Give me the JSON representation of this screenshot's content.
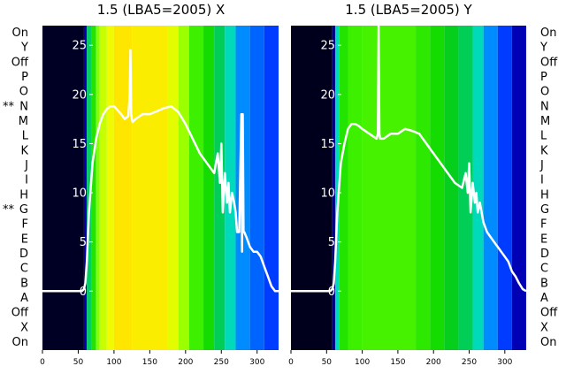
{
  "chart_data": {
    "type": "heatmap",
    "row_labels_top_to_bottom": [
      "On",
      "Y",
      "Off",
      "P",
      "O",
      "N",
      "M",
      "L",
      "K",
      "J",
      "I",
      "H",
      "G",
      "F",
      "E",
      "D",
      "C",
      "B",
      "A",
      "Off",
      "X",
      "On"
    ],
    "row_markers": [
      {
        "row": "N",
        "text": "**"
      },
      {
        "row": "G",
        "text": "**"
      }
    ],
    "panels": [
      {
        "title": "1.5 (LBA5=2005) X",
        "colormap": "gist_ncar",
        "xlim": [
          0,
          330
        ],
        "xticks": [
          0,
          50,
          100,
          150,
          200,
          250,
          300
        ],
        "ylim": [
          -6,
          27
        ],
        "yticks": [
          0,
          5,
          10,
          15,
          20,
          25
        ],
        "bands": [
          {
            "x0": 0,
            "x1": 58,
            "value": 0.02
          },
          {
            "x0": 58,
            "x1": 62,
            "value": 0.1
          },
          {
            "x0": 62,
            "x1": 68,
            "value": 0.35
          },
          {
            "x0": 68,
            "x1": 75,
            "value": 0.5
          },
          {
            "x0": 75,
            "x1": 80,
            "value": 0.62
          },
          {
            "x0": 80,
            "x1": 90,
            "value": 0.7
          },
          {
            "x0": 90,
            "x1": 100,
            "value": 0.76
          },
          {
            "x0": 100,
            "x1": 125,
            "value": 0.82
          },
          {
            "x0": 125,
            "x1": 175,
            "value": 0.8
          },
          {
            "x0": 175,
            "x1": 190,
            "value": 0.74
          },
          {
            "x0": 190,
            "x1": 205,
            "value": 0.65
          },
          {
            "x0": 205,
            "x1": 225,
            "value": 0.55
          },
          {
            "x0": 225,
            "x1": 240,
            "value": 0.47
          },
          {
            "x0": 240,
            "x1": 255,
            "value": 0.36
          },
          {
            "x0": 255,
            "x1": 270,
            "value": 0.28
          },
          {
            "x0": 270,
            "x1": 290,
            "value": 0.18
          },
          {
            "x0": 290,
            "x1": 310,
            "value": 0.16
          },
          {
            "x0": 310,
            "x1": 330,
            "value": 0.14
          }
        ],
        "line_series": {
          "x": [
            0,
            55,
            58,
            60,
            62,
            65,
            68,
            70,
            75,
            80,
            85,
            90,
            95,
            100,
            110,
            115,
            120,
            122,
            123,
            124,
            125,
            126,
            130,
            140,
            150,
            160,
            170,
            180,
            190,
            200,
            210,
            220,
            230,
            240,
            245,
            248,
            250,
            252,
            255,
            258,
            260,
            262,
            265,
            268,
            270,
            272,
            275,
            278,
            279,
            280,
            281,
            282,
            285,
            290,
            295,
            300,
            305,
            310,
            315,
            320,
            325,
            330
          ],
          "y": [
            0,
            0,
            0.2,
            0.8,
            3,
            8,
            11,
            13,
            15.5,
            17,
            18,
            18.5,
            18.8,
            18.8,
            18,
            17.5,
            17.8,
            20,
            24.5,
            18,
            17.5,
            17.2,
            17.5,
            18,
            18,
            18.3,
            18.6,
            18.8,
            18.2,
            17,
            15.5,
            14,
            13,
            12,
            14,
            11,
            15,
            8,
            12,
            9,
            11,
            8,
            10,
            9,
            8,
            6,
            6,
            18,
            4,
            18,
            6,
            6,
            5.5,
            4.5,
            4,
            4,
            3.5,
            2.5,
            1.5,
            0.5,
            0,
            0
          ]
        }
      },
      {
        "title": "1.5 (LBA5=2005) Y",
        "colormap": "gist_ncar",
        "xlim": [
          0,
          330
        ],
        "xticks": [
          0,
          50,
          100,
          150,
          200,
          250,
          300
        ],
        "ylim": [
          -6,
          27
        ],
        "yticks": [
          0,
          5,
          10,
          15,
          20,
          25
        ],
        "bands": [
          {
            "x0": 0,
            "x1": 58,
            "value": 0.01
          },
          {
            "x0": 58,
            "x1": 62,
            "value": 0.08
          },
          {
            "x0": 62,
            "x1": 68,
            "value": 0.28
          },
          {
            "x0": 68,
            "x1": 80,
            "value": 0.5
          },
          {
            "x0": 80,
            "x1": 100,
            "value": 0.55
          },
          {
            "x0": 100,
            "x1": 175,
            "value": 0.56
          },
          {
            "x0": 175,
            "x1": 195,
            "value": 0.52
          },
          {
            "x0": 195,
            "x1": 215,
            "value": 0.47
          },
          {
            "x0": 215,
            "x1": 235,
            "value": 0.42
          },
          {
            "x0": 235,
            "x1": 255,
            "value": 0.36
          },
          {
            "x0": 255,
            "x1": 270,
            "value": 0.28
          },
          {
            "x0": 270,
            "x1": 290,
            "value": 0.18
          },
          {
            "x0": 290,
            "x1": 310,
            "value": 0.14
          },
          {
            "x0": 310,
            "x1": 330,
            "value": 0.1
          }
        ],
        "line_series": {
          "x": [
            0,
            55,
            58,
            60,
            62,
            65,
            68,
            70,
            75,
            80,
            85,
            90,
            95,
            100,
            110,
            120,
            122,
            123,
            124,
            125,
            126,
            130,
            140,
            150,
            160,
            170,
            180,
            190,
            200,
            210,
            220,
            230,
            240,
            245,
            248,
            250,
            252,
            255,
            258,
            260,
            262,
            265,
            270,
            275,
            280,
            285,
            290,
            295,
            300,
            305,
            310,
            315,
            320,
            325,
            330
          ],
          "y": [
            0,
            0,
            0.2,
            0.8,
            3,
            8,
            11,
            13,
            15,
            16.5,
            17,
            17,
            16.8,
            16.5,
            16,
            15.5,
            16,
            27,
            16,
            15.5,
            15.5,
            15.5,
            16,
            16,
            16.5,
            16.3,
            16,
            15,
            14,
            13,
            12,
            11,
            10.5,
            12,
            10,
            13,
            8,
            11,
            9,
            10,
            8,
            9,
            7,
            6,
            5.5,
            5,
            4.5,
            4,
            3.5,
            3,
            2,
            1.5,
            0.8,
            0.2,
            0
          ]
        }
      }
    ]
  }
}
